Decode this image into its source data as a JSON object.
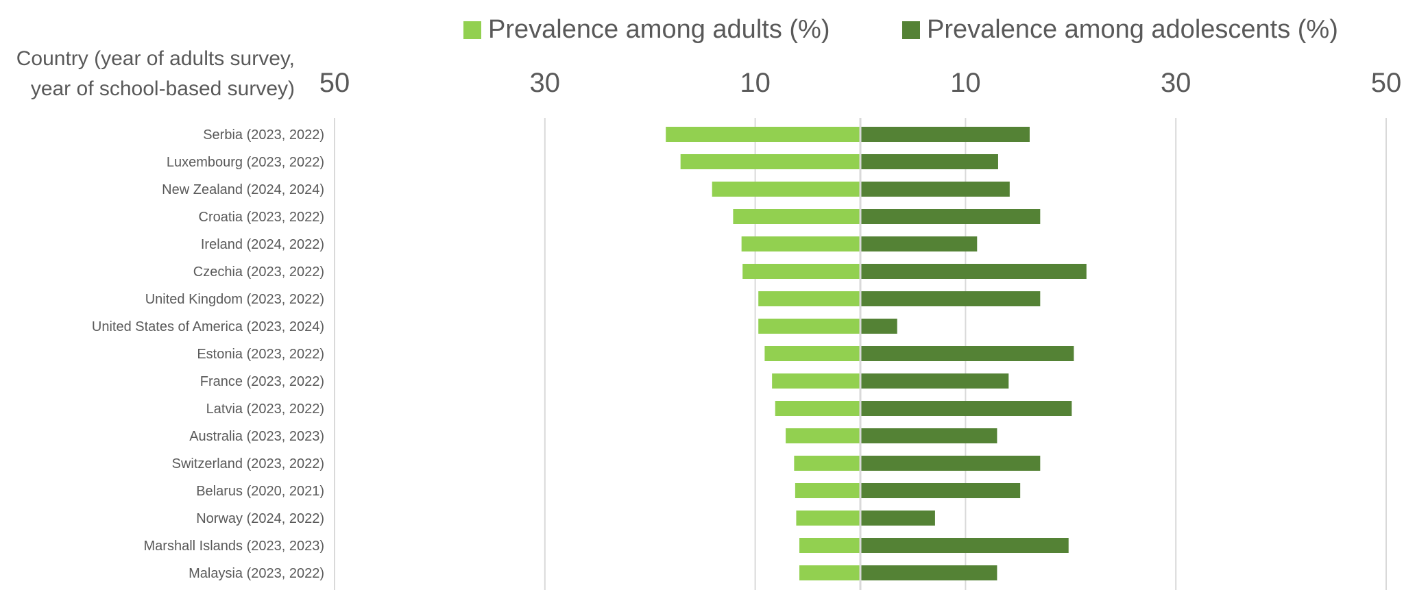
{
  "legend": {
    "adults_label": "Prevalence among adults (%)",
    "adolescents_label": "Prevalence among adolescents (%)"
  },
  "category_header": {
    "line1": "Country (year of adults survey,",
    "line2": "year of school-based survey)"
  },
  "colors": {
    "adults": "#92D050",
    "adolescents": "#548235",
    "gridline": "#D9D9D9",
    "text": "#595959"
  },
  "chart_data": {
    "type": "bar",
    "orientation": "horizontal-diverging",
    "title": "",
    "xlabel": "",
    "ylabel": "Country (year of adults survey, year of school-based survey)",
    "xlim_left": [
      0,
      50
    ],
    "xlim_right": [
      0,
      50
    ],
    "x_tick_labels": [
      "50",
      "30",
      "10",
      "10",
      "30",
      "50"
    ],
    "grid": true,
    "legend_position": "top",
    "categories": [
      "Serbia (2023, 2022)",
      "Luxembourg (2023, 2022)",
      "New Zealand (2024, 2024)",
      "Croatia (2023, 2022)",
      "Ireland (2024, 2022)",
      "Czechia (2023, 2022)",
      "United Kingdom (2023, 2022)",
      "United States of America (2023, 2024)",
      "Estonia (2023, 2022)",
      "France (2023, 2022)",
      "Latvia (2023, 2022)",
      "Australia (2023, 2023)",
      "Switzerland (2023, 2022)",
      "Belarus (2020, 2021)",
      "Norway (2024, 2022)",
      "Marshall Islands (2023, 2023)",
      "Malaysia (2023, 2022)"
    ],
    "series": [
      {
        "name": "Prevalence among adults (%)",
        "side": "left",
        "values": [
          18.5,
          17.1,
          14.1,
          12.1,
          11.3,
          11.2,
          9.7,
          9.7,
          9.1,
          8.4,
          8.1,
          7.1,
          6.3,
          6.2,
          6.1,
          5.8,
          5.8
        ]
      },
      {
        "name": "Prevalence among adolescents (%)",
        "side": "right",
        "values": [
          16.1,
          13.1,
          14.2,
          17.1,
          11.1,
          21.5,
          17.1,
          3.5,
          20.3,
          14.1,
          20.1,
          13.0,
          17.1,
          15.2,
          7.1,
          19.8,
          13.0
        ]
      }
    ]
  }
}
